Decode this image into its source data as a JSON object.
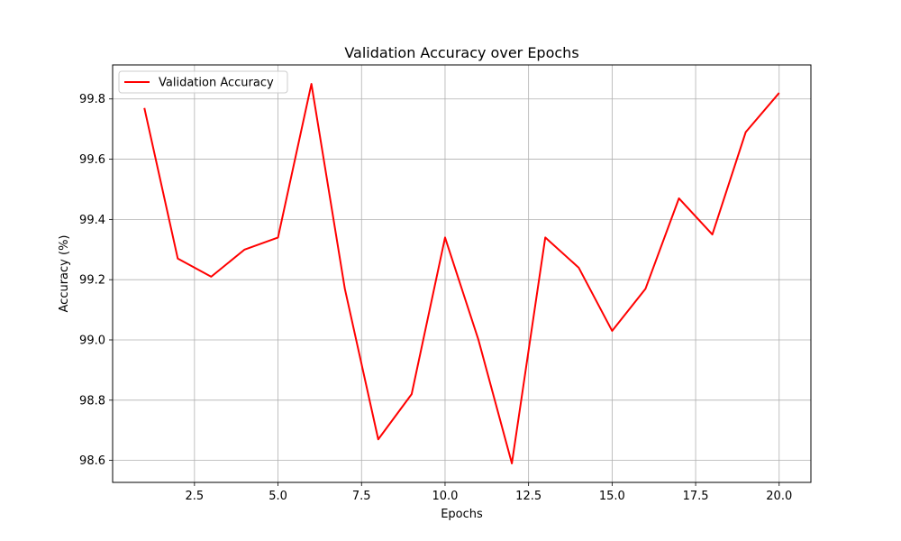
{
  "chart_data": {
    "type": "line",
    "title": "Validation Accuracy over Epochs",
    "xlabel": "Epochs",
    "ylabel": "Accuracy (%)",
    "xlim": [
      0.05,
      20.95
    ],
    "ylim": [
      98.527,
      99.913
    ],
    "xticks": [
      2.5,
      5.0,
      7.5,
      10.0,
      12.5,
      15.0,
      17.5,
      20.0
    ],
    "xtick_labels": [
      "2.5",
      "5.0",
      "7.5",
      "10.0",
      "12.5",
      "15.0",
      "17.5",
      "20.0"
    ],
    "yticks": [
      98.6,
      98.8,
      99.0,
      99.2,
      99.4,
      99.6,
      99.8
    ],
    "ytick_labels": [
      "98.6",
      "98.8",
      "99.0",
      "99.2",
      "99.4",
      "99.6",
      "99.8"
    ],
    "grid": true,
    "legend_position": "upper-left",
    "series": [
      {
        "name": "Validation Accuracy",
        "color": "#ff0000",
        "x": [
          1,
          2,
          3,
          4,
          5,
          6,
          7,
          8,
          9,
          10,
          11,
          12,
          13,
          14,
          15,
          16,
          17,
          18,
          19,
          20
        ],
        "y": [
          99.77,
          99.27,
          99.21,
          99.3,
          99.34,
          99.85,
          99.17,
          98.67,
          98.82,
          99.34,
          99.0,
          98.59,
          99.34,
          99.24,
          99.03,
          99.17,
          99.47,
          99.35,
          99.69,
          99.82
        ]
      }
    ]
  }
}
